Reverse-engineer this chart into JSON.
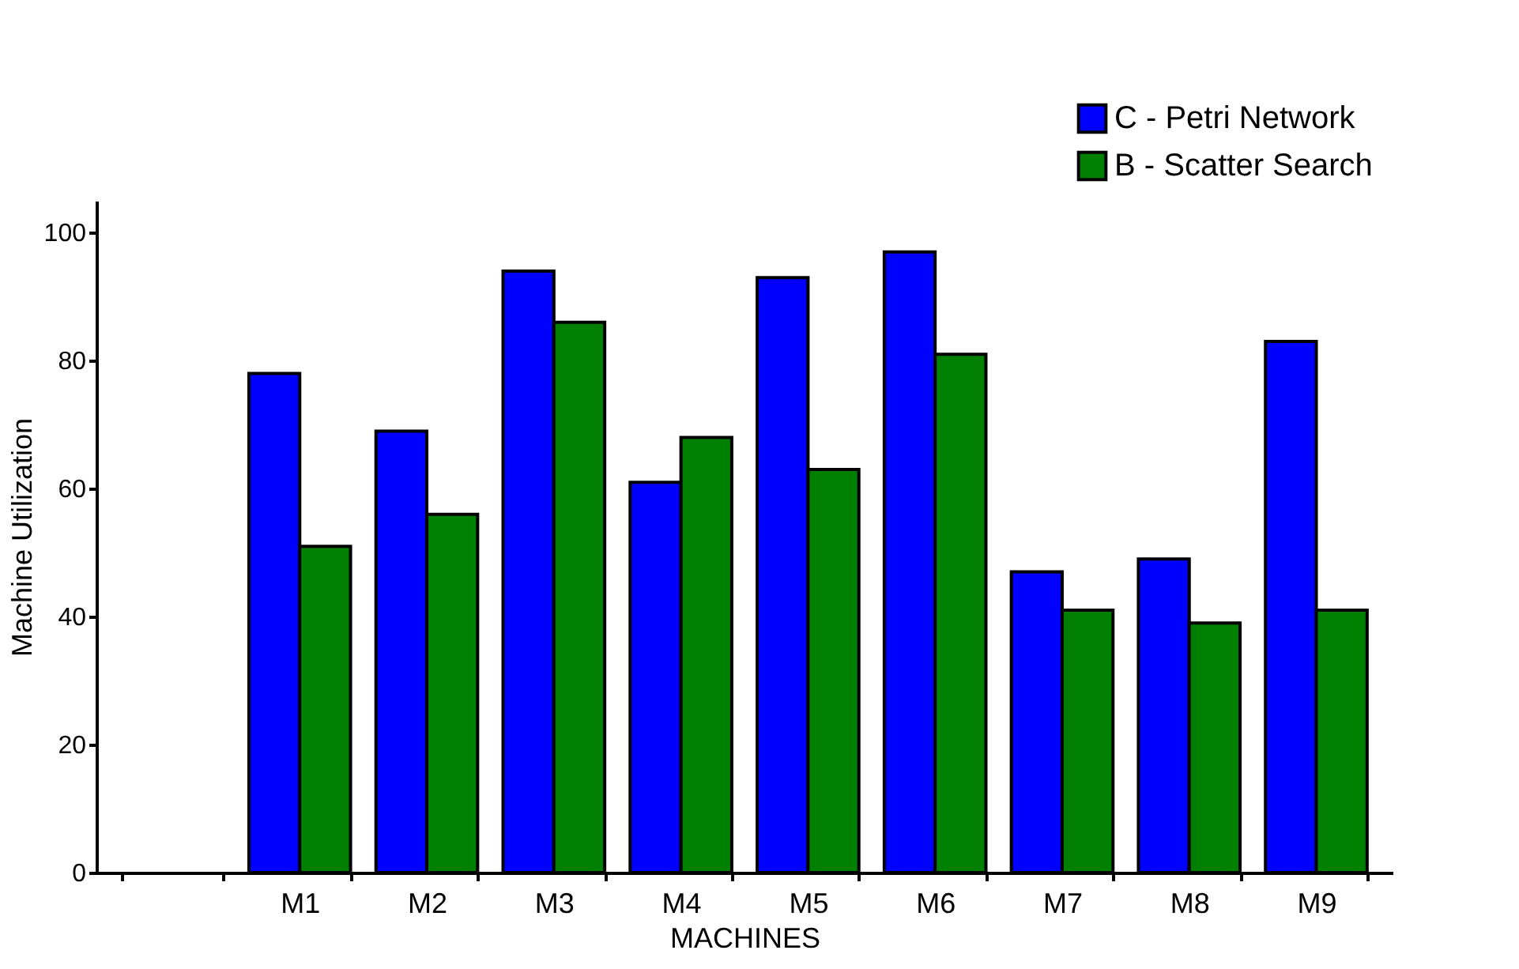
{
  "chart_data": {
    "type": "bar",
    "xlabel": "MACHINES",
    "ylabel": "Machine Utilization",
    "categories": [
      null,
      "M1",
      "M2",
      "M3",
      "M4",
      "M5",
      "M6",
      "M7",
      "M8",
      "M9"
    ],
    "series": [
      {
        "name": "C - Petri Network",
        "color": "#0000ff",
        "values": [
          null,
          78,
          69,
          94,
          61,
          93,
          97,
          47,
          49,
          83
        ]
      },
      {
        "name": "B - Scatter Search",
        "color": "#008000",
        "values": [
          null,
          51,
          56,
          86,
          68,
          63,
          81,
          41,
          39,
          41
        ]
      }
    ],
    "ylim": [
      0,
      105
    ],
    "yticks": [
      0,
      20,
      40,
      60,
      80,
      100
    ],
    "grid": false,
    "legend": "top right"
  }
}
